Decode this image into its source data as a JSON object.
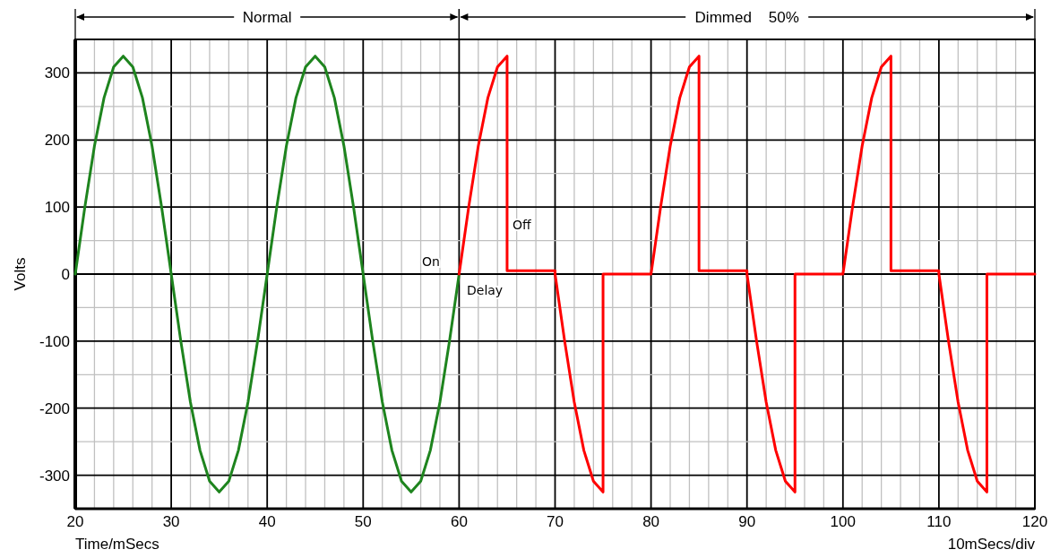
{
  "chart_data": {
    "type": "line",
    "xlabel": "Time/mSecs",
    "ylabel": "Volts",
    "xlim": [
      20,
      120
    ],
    "ylim": [
      -350,
      350
    ],
    "xticks": [
      20,
      {
        "value": 22,
        "label": null
      },
      {
        "value": 24,
        "label": null
      },
      {
        "value": 26,
        "label": null
      },
      {
        "value": 28,
        "label": null
      },
      30,
      {
        "value": 32,
        "label": null
      },
      {
        "value": 34,
        "label": null
      },
      {
        "value": 36,
        "label": null
      },
      {
        "value": 38,
        "label": null
      },
      40,
      {
        "value": 42,
        "label": null
      },
      {
        "value": 44,
        "label": null
      },
      {
        "value": 46,
        "label": null
      },
      {
        "value": 48,
        "label": null
      },
      50,
      {
        "value": 52,
        "label": null
      },
      {
        "value": 54,
        "label": null
      },
      {
        "value": 56,
        "label": null
      },
      {
        "value": 58,
        "label": null
      },
      60,
      {
        "value": 62,
        "label": null
      },
      {
        "value": 64,
        "label": null
      },
      {
        "value": 66,
        "label": null
      },
      {
        "value": 68,
        "label": null
      },
      70,
      {
        "value": 72,
        "label": null
      },
      {
        "value": 74,
        "label": null
      },
      {
        "value": 76,
        "label": null
      },
      {
        "value": 78,
        "label": null
      },
      80,
      {
        "value": 82,
        "label": null
      },
      {
        "value": 84,
        "label": null
      },
      {
        "value": 86,
        "label": null
      },
      {
        "value": 88,
        "label": null
      },
      90,
      {
        "value": 92,
        "label": null
      },
      {
        "value": 94,
        "label": null
      },
      {
        "value": 96,
        "label": null
      },
      {
        "value": 98,
        "label": null
      },
      100,
      {
        "value": 102,
        "label": null
      },
      {
        "value": 104,
        "label": null
      },
      {
        "value": 106,
        "label": null
      },
      {
        "value": 108,
        "label": null
      },
      110,
      {
        "value": 112,
        "label": null
      },
      {
        "value": 114,
        "label": null
      },
      {
        "value": 116,
        "label": null
      },
      {
        "value": 118,
        "label": null
      },
      120
    ],
    "yticks": [
      -300,
      {
        "value": -250,
        "label": null
      },
      -200,
      {
        "value": -150,
        "label": null
      },
      -100,
      {
        "value": -50,
        "label": null
      },
      0,
      {
        "value": 50,
        "label": null
      },
      100,
      {
        "value": 150,
        "label": null
      },
      200,
      {
        "value": 250,
        "label": null
      },
      300
    ],
    "grid": true,
    "legend": false,
    "line_style": "solid",
    "marker": "none",
    "series": [
      {
        "color": "#1e841e",
        "x": [
          20,
          21,
          22,
          23,
          24,
          25,
          26,
          27,
          28,
          29,
          30,
          31,
          32,
          33,
          34,
          35,
          36,
          37,
          38,
          39,
          40,
          41,
          42,
          43,
          44,
          45,
          46,
          47,
          48,
          49,
          50,
          51,
          52,
          53,
          54,
          55,
          56,
          57,
          58,
          59,
          60
        ],
        "values": [
          0,
          100,
          191,
          263,
          309,
          325,
          309,
          263,
          191,
          100,
          0,
          -100,
          -191,
          -263,
          -309,
          -325,
          -309,
          -263,
          -191,
          -100,
          0,
          100,
          191,
          263,
          309,
          325,
          309,
          263,
          191,
          100,
          0,
          -100,
          -191,
          -263,
          -309,
          -325,
          -309,
          -263,
          -191,
          -100,
          0
        ]
      },
      {
        "color": "#ff0000",
        "x": [
          60,
          61,
          62,
          63,
          64,
          65,
          65,
          70,
          70,
          71,
          72,
          73,
          74,
          75,
          75,
          80,
          81,
          82,
          83,
          84,
          85,
          85,
          90,
          90,
          91,
          92,
          93,
          94,
          95,
          95,
          100,
          101,
          102,
          103,
          104,
          105,
          105,
          110,
          110,
          111,
          112,
          113,
          114,
          115,
          115,
          120
        ],
        "values": [
          0,
          100,
          191,
          263,
          309,
          325,
          5,
          5,
          0,
          -100,
          -191,
          -263,
          -309,
          -325,
          0,
          0,
          100,
          191,
          263,
          309,
          325,
          5,
          5,
          0,
          -100,
          -191,
          -263,
          -309,
          -325,
          0,
          0,
          100,
          191,
          263,
          309,
          325,
          5,
          5,
          0,
          -100,
          -191,
          -263,
          -309,
          -325,
          0,
          0
        ]
      }
    ],
    "annotations": [
      "Normal",
      "Dimmed    50%",
      "On",
      "Off",
      "Delay",
      "10mSecs/div"
    ]
  }
}
